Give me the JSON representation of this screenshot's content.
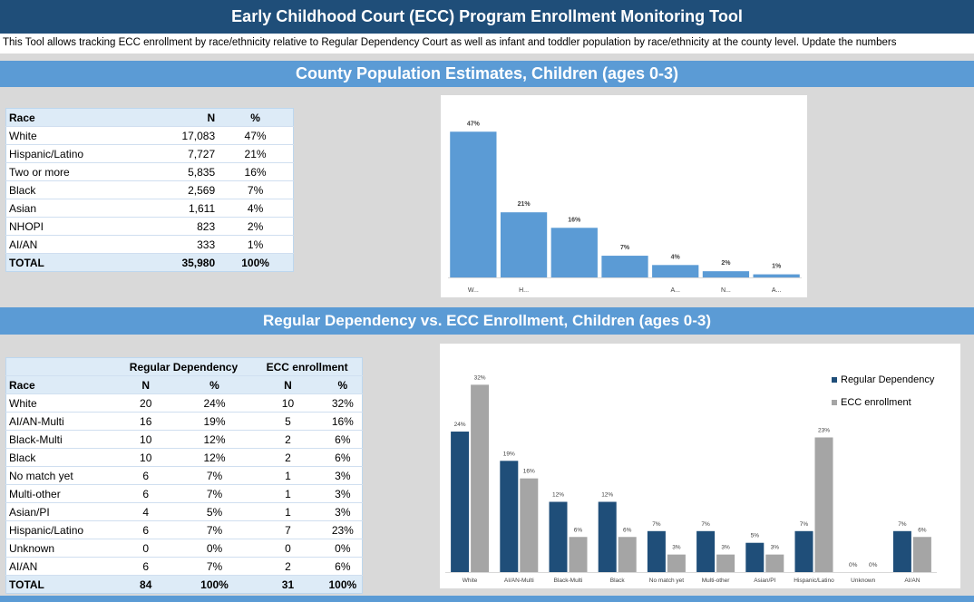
{
  "title": "Early Childhood Court (ECC) Program Enrollment Monitoring Tool",
  "description": "This Tool allows tracking ECC enrollment by race/ethnicity relative to Regular Dependency Court as well as infant and toddler population by race/ethnicity at the county level.  Update the numbers",
  "section1_title": "County Population Estimates, Children (ages 0-3)",
  "section2_title": "Regular Dependency vs. ECC Enrollment, Children (ages 0-3)",
  "population_table": {
    "headers": [
      "Race",
      "N",
      "%"
    ],
    "rows": [
      [
        "White",
        "17,083",
        "47%"
      ],
      [
        "Hispanic/Latino",
        "7,727",
        "21%"
      ],
      [
        "Two or more",
        "5,835",
        "16%"
      ],
      [
        "Black",
        "2,569",
        "7%"
      ],
      [
        "Asian",
        "1,611",
        "4%"
      ],
      [
        "NHOPI",
        "823",
        "2%"
      ],
      [
        "AI/AN",
        "333",
        "1%"
      ]
    ],
    "total": [
      "TOTAL",
      "35,980",
      "100%"
    ]
  },
  "enrollment_table": {
    "group_headers": [
      "Regular Dependency",
      "ECC enrollment"
    ],
    "headers": [
      "Race",
      "N",
      "%",
      "N",
      "%"
    ],
    "rows": [
      [
        "White",
        "20",
        "24%",
        "10",
        "32%"
      ],
      [
        "AI/AN-Multi",
        "16",
        "19%",
        "5",
        "16%"
      ],
      [
        "Black-Multi",
        "10",
        "12%",
        "2",
        "6%"
      ],
      [
        "Black",
        "10",
        "12%",
        "2",
        "6%"
      ],
      [
        "No match yet",
        "6",
        "7%",
        "1",
        "3%"
      ],
      [
        "Multi-other",
        "6",
        "7%",
        "1",
        "3%"
      ],
      [
        "Asian/PI",
        "4",
        "5%",
        "1",
        "3%"
      ],
      [
        "Hispanic/Latino",
        "6",
        "7%",
        "7",
        "23%"
      ],
      [
        "Unknown",
        "0",
        "0%",
        "0",
        "0%"
      ],
      [
        "AI/AN",
        "6",
        "7%",
        "2",
        "6%"
      ]
    ],
    "total": [
      "TOTAL",
      "84",
      "100%",
      "31",
      "100%"
    ]
  },
  "colors": {
    "dark_blue": "#1f4e79",
    "light_blue": "#5b9bd5",
    "gray_bar": "#a5a5a5",
    "navy_bar": "#1f4e79"
  },
  "chart_data": [
    {
      "type": "bar",
      "categories": [
        "W...",
        "H...",
        "",
        "",
        "A...",
        "N...",
        "A..."
      ],
      "values": [
        47,
        21,
        16,
        7,
        4,
        2,
        1
      ],
      "data_labels": [
        "47%",
        "21%",
        "16%",
        "7%",
        "4%",
        "2%",
        "1%"
      ],
      "ylim": [
        0,
        50
      ]
    },
    {
      "type": "bar",
      "categories": [
        "White",
        "AI/AN-Multi",
        "Black-Multi",
        "Black",
        "No match yet",
        "Multi-other",
        "Asian/PI",
        "Hispanic/Latino",
        "Unknown",
        "AI/AN"
      ],
      "series": [
        {
          "name": "Regular Dependency",
          "values": [
            24,
            19,
            12,
            12,
            7,
            7,
            5,
            7,
            0,
            7
          ],
          "labels": [
            "24%",
            "19%",
            "12%",
            "12%",
            "7%",
            "7%",
            "5%",
            "7%",
            "0%",
            "7%"
          ],
          "color": "#1f4e79"
        },
        {
          "name": "ECC enrollment",
          "values": [
            32,
            16,
            6,
            6,
            3,
            3,
            3,
            23,
            0,
            6
          ],
          "labels": [
            "32%",
            "16%",
            "6%",
            "6%",
            "3%",
            "3%",
            "3%",
            "23%",
            "0%",
            "6%"
          ],
          "color": "#a5a5a5"
        }
      ],
      "legend_position": "top-right",
      "ylim": [
        0,
        35
      ]
    }
  ]
}
